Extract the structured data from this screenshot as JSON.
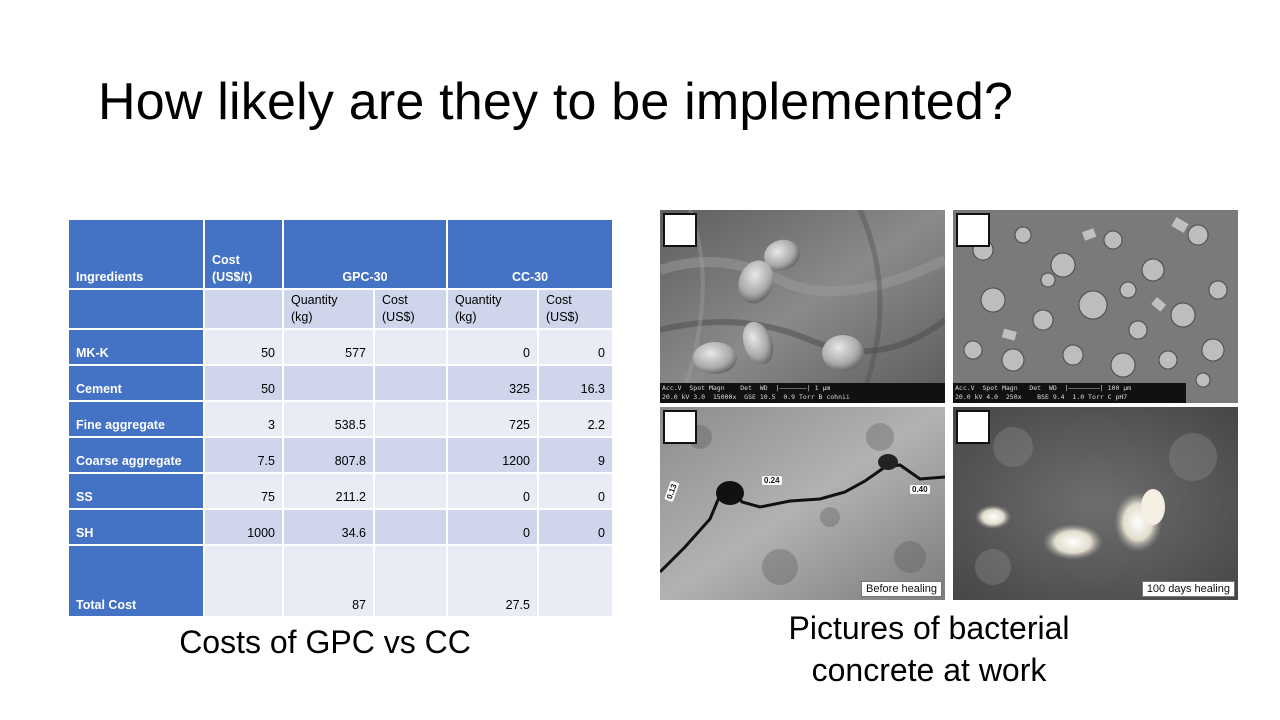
{
  "slide": {
    "title": "How likely are they to be implemented?"
  },
  "table": {
    "header": {
      "ingredients": "Ingredients",
      "cost": "Cost\n(US$/t)",
      "gpc": "GPC-30",
      "cc": "CC-30"
    },
    "subheader": {
      "quantity_kg": "Quantity\n(kg)",
      "cost_usd": "Cost\n(US$)"
    },
    "rows": [
      {
        "label": "MK-K",
        "cost": "50",
        "gpc_qty": "577",
        "gpc_cost": "",
        "cc_qty": "0",
        "cc_cost": "0"
      },
      {
        "label": "Cement",
        "cost": "50",
        "gpc_qty": "",
        "gpc_cost": "",
        "cc_qty": "325",
        "cc_cost": "16.3"
      },
      {
        "label": "Fine aggregate",
        "cost": "3",
        "gpc_qty": "538.5",
        "gpc_cost": "",
        "cc_qty": "725",
        "cc_cost": "2.2"
      },
      {
        "label": "Coarse aggregate",
        "cost": "7.5",
        "gpc_qty": "807.8",
        "gpc_cost": "",
        "cc_qty": "1200",
        "cc_cost": "9"
      },
      {
        "label": "SS",
        "cost": "75",
        "gpc_qty": "211.2",
        "gpc_cost": "",
        "cc_qty": "0",
        "cc_cost": "0"
      },
      {
        "label": "SH",
        "cost": "1000",
        "gpc_qty": "34.6",
        "gpc_cost": "",
        "cc_qty": "0",
        "cc_cost": "0"
      }
    ],
    "total": {
      "label": "Total Cost",
      "gpc_qty": "87",
      "cc_qty": "27.5"
    }
  },
  "captions": {
    "left": "Costs of GPC vs CC",
    "right": "Pictures of bacterial concrete at work"
  },
  "photos": {
    "sem1_scale": "Acc.V  Spot Magn    Det  WD  |———————| 1 μm\n20.0 kV 3.0  15000x  GSE 10.5  0.9 Torr B cohnii",
    "sem2_scale": "Acc.V  Spot Magn   Det  WD  |————————| 100 μm\n20.0 kV 4.0  250x    BSE 9.4  1.0 Torr C pH7",
    "crack_labels": [
      "0.13",
      "0.24",
      "0.40"
    ],
    "before_label": "Before healing",
    "after_label": "100 days healing"
  }
}
